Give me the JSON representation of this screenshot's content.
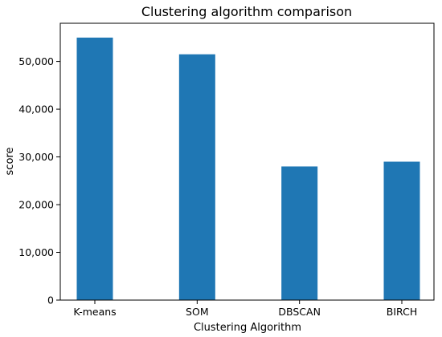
{
  "chart_data": {
    "type": "bar",
    "title": "Clustering algorithm comparison",
    "xlabel": "Clustering Algorithm",
    "ylabel": "score",
    "categories": [
      "K-means",
      "SOM",
      "DBSCAN",
      "BIRCH"
    ],
    "values": [
      55000,
      51500,
      28000,
      29000
    ],
    "ylim": [
      0,
      58000
    ],
    "yticks": [
      0,
      10000,
      20000,
      30000,
      40000,
      50000
    ],
    "ytick_labels": [
      "0",
      "10,000",
      "20,000",
      "30,000",
      "40,000",
      "50,000"
    ],
    "bar_color": "#1f77b4",
    "grid": false,
    "legend": "none"
  }
}
